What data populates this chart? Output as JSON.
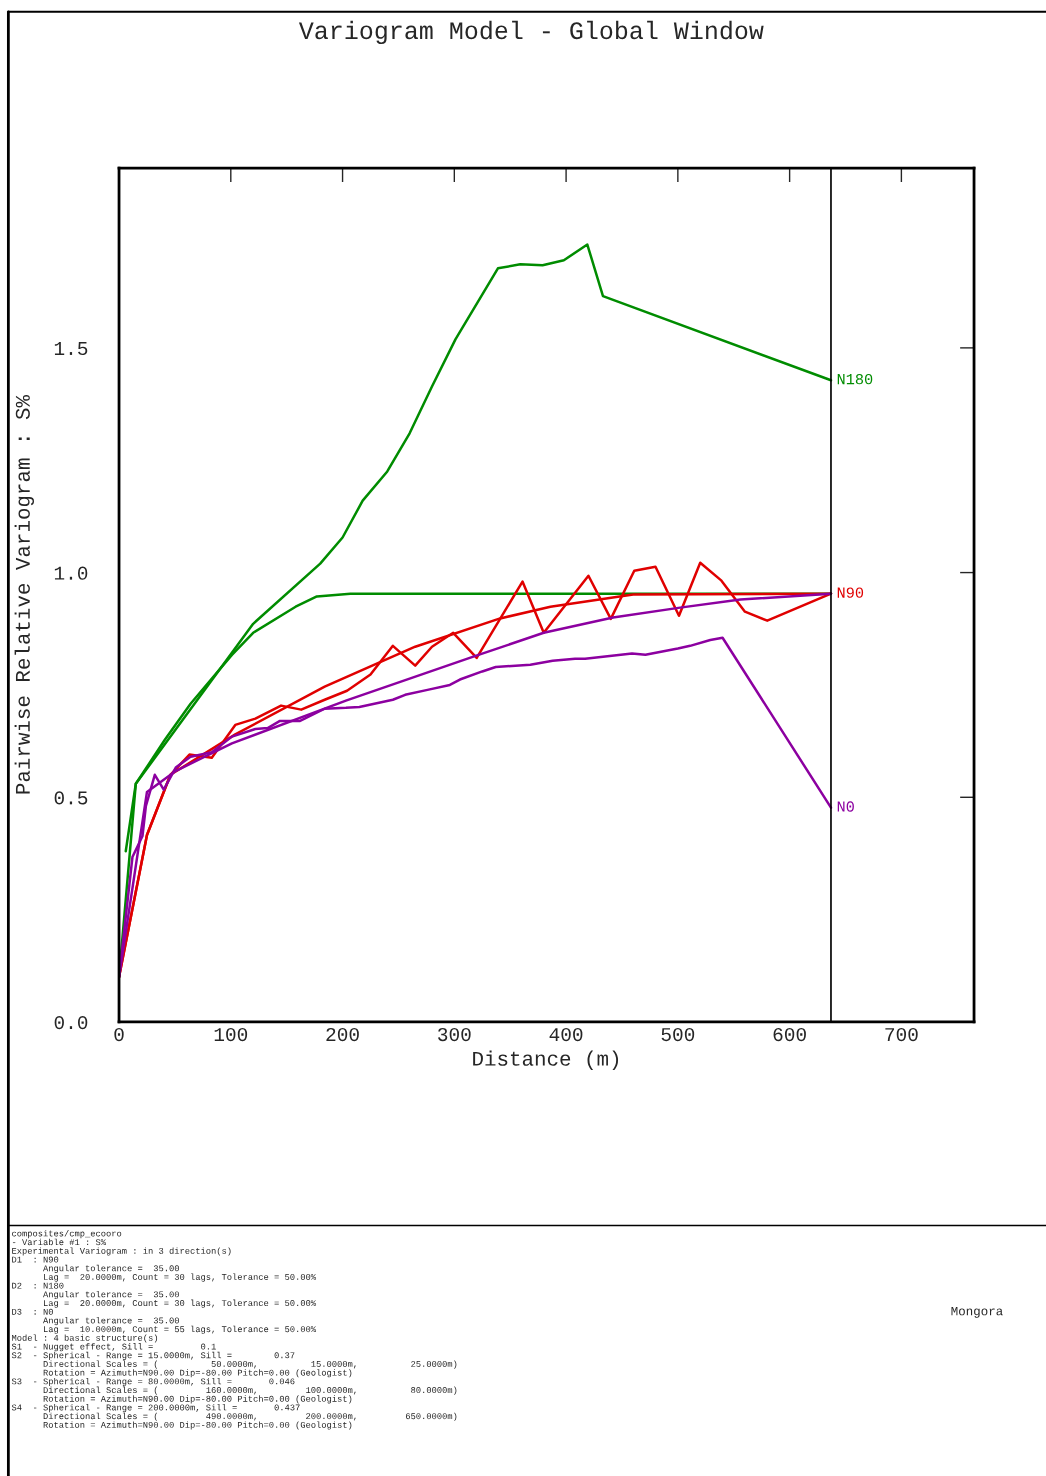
{
  "chart_data": {
    "type": "line",
    "title": "Variogram Model - Global Window",
    "xlabel": "Distance (m)",
    "ylabel": "Pairwise Relative Variogram : S%",
    "xlim": [
      0,
      765
    ],
    "ylim": [
      0,
      1.9
    ],
    "xticks": [
      0,
      100,
      200,
      300,
      400,
      500,
      600,
      700
    ],
    "yticks": [
      {
        "value": 0,
        "label": "0.0"
      },
      {
        "value": 0.5,
        "label": "0.5"
      },
      {
        "value": 1,
        "label": "1.0"
      },
      {
        "value": 1.5,
        "label": "1.5"
      }
    ],
    "grid": false,
    "legend": false,
    "marker": "none",
    "line_style": "solid",
    "ref_lines": [
      {
        "axis": "x",
        "value": 637,
        "color": "#000000"
      }
    ],
    "series": [
      {
        "name": "N180",
        "color": "#008c00",
        "x": [
          6,
          15,
          120,
          180,
          200,
          218,
          240,
          260,
          280,
          301,
          339,
          359,
          379,
          398,
          419,
          433,
          637
        ],
        "values": [
          0.38,
          0.53,
          0.886,
          1.02,
          1.078,
          1.16,
          1.225,
          1.31,
          1.414,
          1.519,
          1.677,
          1.686,
          1.684,
          1.695,
          1.73,
          1.615,
          1.428
        ]
      },
      {
        "color": "#008c00",
        "x": [
          0,
          15,
          41,
          64,
          101,
          120,
          158,
          177,
          207,
          637
        ],
        "values": [
          0.1,
          0.53,
          0.628,
          0.708,
          0.817,
          0.866,
          0.924,
          0.947,
          0.953,
          0.953
        ]
      },
      {
        "name": "N90",
        "color": "#e00000",
        "x": [
          0,
          25,
          46,
          63,
          83,
          104,
          122,
          145,
          163,
          184,
          204,
          225,
          245,
          265,
          280,
          299,
          320,
          361,
          380,
          420,
          440,
          461,
          480,
          501,
          520,
          539,
          560,
          580,
          637
        ],
        "values": [
          0.1,
          0.416,
          0.55,
          0.595,
          0.588,
          0.661,
          0.675,
          0.704,
          0.695,
          0.717,
          0.737,
          0.773,
          0.837,
          0.793,
          0.835,
          0.866,
          0.81,
          0.98,
          0.866,
          0.993,
          0.897,
          1.004,
          1.013,
          0.904,
          1.022,
          0.982,
          0.913,
          0.893,
          0.953
        ]
      },
      {
        "color": "#e00000",
        "x": [
          0,
          25,
          46,
          104,
          184,
          265,
          341,
          386,
          460,
          637
        ],
        "values": [
          0.1,
          0.416,
          0.55,
          0.64,
          0.746,
          0.835,
          0.898,
          0.924,
          0.951,
          0.953
        ]
      },
      {
        "name": "N0",
        "color": "#8c00a0",
        "x": [
          0,
          12,
          21,
          24,
          32,
          40,
          51,
          64,
          83,
          101,
          122,
          133,
          144,
          162,
          184,
          203,
          215,
          245,
          256,
          276,
          296,
          305,
          325,
          337,
          368,
          388,
          408,
          417,
          459,
          471,
          500,
          511,
          529,
          540,
          637
        ],
        "values": [
          0.1,
          0.367,
          0.414,
          0.48,
          0.55,
          0.517,
          0.567,
          0.59,
          0.6,
          0.635,
          0.652,
          0.654,
          0.67,
          0.67,
          0.697,
          0.699,
          0.701,
          0.717,
          0.728,
          0.739,
          0.75,
          0.762,
          0.78,
          0.79,
          0.795,
          0.804,
          0.808,
          0.808,
          0.82,
          0.817,
          0.831,
          0.837,
          0.85,
          0.855,
          0.477
        ]
      },
      {
        "color": "#8c00a0",
        "x": [
          0,
          25,
          51,
          101,
          203,
          317,
          380,
          442,
          502,
          556,
          637
        ],
        "values": [
          0.1,
          0.512,
          0.559,
          0.62,
          0.715,
          0.813,
          0.866,
          0.9,
          0.922,
          0.94,
          0.953
        ]
      }
    ],
    "annotations": [
      "composites/cmp_ecooro",
      "- Variable #1 : S%",
      "Experimental Variogram : in 3 direction(s)",
      "D1  : N90",
      "      Angular tolerance =  35.00",
      "      Lag =  20.0000m, Count = 30 lags, Tolerance = 50.00%",
      "D2  : N180",
      "      Angular tolerance =  35.00",
      "      Lag =  20.0000m, Count = 30 lags, Tolerance = 50.00%",
      "D3  : N0",
      "      Angular tolerance =  35.00",
      "      Lag =  10.0000m, Count = 55 lags, Tolerance = 50.00%",
      "Model : 4 basic structure(s)",
      "S1  - Nugget effect, Sill =         0.1",
      "S2  - Spherical - Range = 15.0000m, Sill =        0.37",
      "      Directional Scales = (          50.0000m,          15.0000m,          25.0000m)",
      "      Rotation = Azimuth=N90.00 Dip=-80.00 Pitch=0.00 (Geologist)",
      "S3  - Spherical - Range = 80.0000m, Sill =       0.046",
      "      Directional Scales = (         160.0000m,         100.0000m,          80.0000m)",
      "      Rotation = Azimuth=N90.00 Dip=-80.00 Pitch=0.00 (Geologist)",
      "S4  - Spherical - Range = 200.0000m, Sill =       0.437",
      "      Directional Scales = (         490.0000m,         200.0000m,         650.0000m)",
      "      Rotation = Azimuth=N90.00 Dip=-80.00 Pitch=0.00 (Geologist)",
      "Mongora"
    ]
  }
}
